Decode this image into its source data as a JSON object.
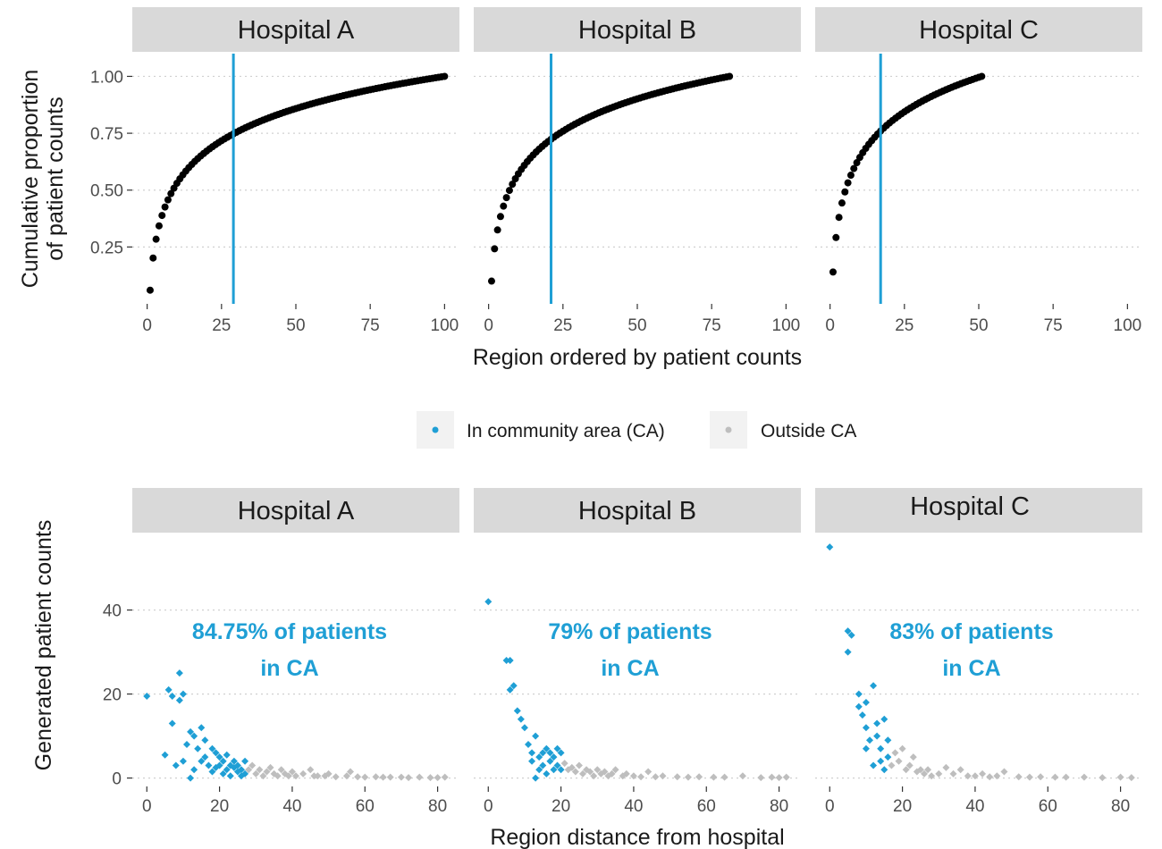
{
  "colors": {
    "in_ca": "#1f9fd5",
    "outside_ca": "#bebebe",
    "cdf_points": "#000000",
    "cutoff_line": "#1f9fd5",
    "strip_bg": "#d9d9d9",
    "grid": "#d0d0d0"
  },
  "legend": {
    "in_label": "In community area (CA)",
    "out_label": "Outside CA",
    "position": "top-center, between panels"
  },
  "chart_data": [
    {
      "type": "scatter",
      "facet_by": "hospital",
      "facets": [
        "Hospital A",
        "Hospital B",
        "Hospital C"
      ],
      "xlabel": "Region ordered by patient counts",
      "ylabel_lines": [
        "Cumulative proportion",
        "of patient counts"
      ],
      "xlim": [
        -5,
        105
      ],
      "ylim": [
        0.0,
        1.1
      ],
      "xticks": [
        0,
        25,
        50,
        75,
        100
      ],
      "yticks": [
        0.25,
        0.5,
        0.75,
        1.0
      ],
      "ytick_labels": [
        "0.25",
        "0.50",
        "0.75",
        "1.00"
      ],
      "grid": "horizontal dotted",
      "series": [
        {
          "facet": "Hospital A",
          "n_regions": 100,
          "first_value": 0.06,
          "cutoff_region": 29,
          "cutoff_proportion": 0.71
        },
        {
          "facet": "Hospital B",
          "n_regions": 81,
          "first_value": 0.1,
          "cutoff_region": 21,
          "cutoff_proportion": 0.72
        },
        {
          "facet": "Hospital C",
          "n_regions": 51,
          "first_value": 0.14,
          "cutoff_region": 17,
          "cutoff_proportion": 0.8
        }
      ]
    },
    {
      "type": "scatter",
      "facet_by": "hospital",
      "facets": [
        "Hospital A",
        "Hospital B",
        "Hospital C"
      ],
      "xlabel": "Region distance from hospital",
      "ylabel": "Generated patient counts",
      "xlim": [
        -4,
        86
      ],
      "ylim": [
        -2,
        58
      ],
      "xticks": [
        0,
        20,
        40,
        60,
        80
      ],
      "yticks": [
        0,
        20,
        40
      ],
      "grid": "horizontal dotted",
      "series": [
        {
          "facet": "Hospital A",
          "annotation_lines": [
            "84.75% of patients",
            "in CA"
          ],
          "in_ca": [
            [
              0,
              19.5
            ],
            [
              5,
              5.5
            ],
            [
              6,
              21
            ],
            [
              7,
              13
            ],
            [
              7,
              19.5
            ],
            [
              8,
              3
            ],
            [
              9,
              25
            ],
            [
              9,
              18.5
            ],
            [
              10,
              20
            ],
            [
              10,
              4
            ],
            [
              11,
              8
            ],
            [
              12,
              0
            ],
            [
              12,
              11
            ],
            [
              13,
              10
            ],
            [
              13,
              2
            ],
            [
              14,
              7
            ],
            [
              15,
              12
            ],
            [
              15,
              4
            ],
            [
              16,
              5
            ],
            [
              16,
              9
            ],
            [
              17,
              3
            ],
            [
              18,
              1.5
            ],
            [
              18,
              7
            ],
            [
              19,
              6
            ],
            [
              19,
              2.5
            ],
            [
              20,
              5
            ],
            [
              20,
              3
            ],
            [
              21,
              4
            ],
            [
              21,
              1
            ],
            [
              22,
              2
            ],
            [
              22,
              5.5
            ],
            [
              23,
              3
            ],
            [
              23,
              0.5
            ],
            [
              24,
              2.5
            ],
            [
              24,
              4
            ],
            [
              25,
              1.5
            ],
            [
              25,
              3
            ],
            [
              26,
              2
            ],
            [
              26,
              0.5
            ],
            [
              27,
              4
            ],
            [
              27,
              1
            ]
          ],
          "outside_ca": [
            [
              28,
              2
            ],
            [
              29,
              3
            ],
            [
              30,
              1
            ],
            [
              31,
              2
            ],
            [
              32,
              0.5
            ],
            [
              33,
              1.5
            ],
            [
              34,
              2.5
            ],
            [
              35,
              1
            ],
            [
              36,
              0.5
            ],
            [
              37,
              2
            ],
            [
              38,
              1
            ],
            [
              39,
              0.5
            ],
            [
              40,
              1.5
            ],
            [
              41,
              0.5
            ],
            [
              43,
              1
            ],
            [
              45,
              2
            ],
            [
              46,
              0.5
            ],
            [
              47,
              0.5
            ],
            [
              49,
              0.5
            ],
            [
              50,
              1
            ],
            [
              52,
              0.3
            ],
            [
              55,
              0.5
            ],
            [
              56,
              1.5
            ],
            [
              58,
              0.3
            ],
            [
              60,
              0.2
            ],
            [
              63,
              0.3
            ],
            [
              65,
              0.2
            ],
            [
              67,
              0.2
            ],
            [
              70,
              0.2
            ],
            [
              72,
              0.1
            ],
            [
              75,
              0.2
            ],
            [
              78,
              0.1
            ],
            [
              80,
              0.1
            ],
            [
              82,
              0.2
            ]
          ]
        },
        {
          "facet": "Hospital B",
          "annotation_lines": [
            "79% of patients",
            "in CA"
          ],
          "in_ca": [
            [
              0,
              42
            ],
            [
              5,
              28
            ],
            [
              6,
              28
            ],
            [
              6,
              21
            ],
            [
              7,
              22
            ],
            [
              8,
              16
            ],
            [
              9,
              14
            ],
            [
              10,
              12
            ],
            [
              11,
              8
            ],
            [
              12,
              6
            ],
            [
              12,
              4
            ],
            [
              13,
              0
            ],
            [
              13,
              10
            ],
            [
              14,
              2
            ],
            [
              14,
              5
            ],
            [
              15,
              6
            ],
            [
              15,
              3
            ],
            [
              16,
              7
            ],
            [
              16,
              1
            ],
            [
              17,
              4
            ],
            [
              17,
              6
            ],
            [
              18,
              2
            ],
            [
              18,
              5
            ],
            [
              19,
              3
            ],
            [
              19,
              7
            ],
            [
              20,
              6
            ],
            [
              20,
              2
            ]
          ],
          "outside_ca": [
            [
              21,
              3.5
            ],
            [
              22,
              2
            ],
            [
              23,
              2.5
            ],
            [
              24,
              1.5
            ],
            [
              25,
              3
            ],
            [
              26,
              1
            ],
            [
              27,
              2
            ],
            [
              28,
              1.5
            ],
            [
              29,
              0.5
            ],
            [
              30,
              2
            ],
            [
              31,
              1
            ],
            [
              32,
              1.5
            ],
            [
              33,
              0.5
            ],
            [
              34,
              1
            ],
            [
              35,
              2
            ],
            [
              37,
              0.5
            ],
            [
              38,
              1
            ],
            [
              40,
              0.5
            ],
            [
              42,
              0.3
            ],
            [
              44,
              1.5
            ],
            [
              46,
              0.3
            ],
            [
              48,
              0.5
            ],
            [
              52,
              0.3
            ],
            [
              55,
              0.2
            ],
            [
              58,
              0.3
            ],
            [
              62,
              0.2
            ],
            [
              65,
              0.2
            ],
            [
              70,
              0.5
            ],
            [
              75,
              0.1
            ],
            [
              78,
              0.2
            ],
            [
              80,
              0.1
            ],
            [
              82,
              0.2
            ]
          ]
        },
        {
          "facet": "Hospital C",
          "annotation_lines": [
            "83% of patients",
            "in CA"
          ],
          "in_ca": [
            [
              0,
              55
            ],
            [
              5,
              35
            ],
            [
              6,
              34
            ],
            [
              5,
              30
            ],
            [
              8,
              20
            ],
            [
              8,
              17
            ],
            [
              9,
              15
            ],
            [
              10,
              12
            ],
            [
              10,
              7
            ],
            [
              10,
              18
            ],
            [
              11,
              9
            ],
            [
              12,
              22
            ],
            [
              12,
              3
            ],
            [
              13,
              13
            ],
            [
              13,
              10
            ],
            [
              14,
              4
            ],
            [
              14,
              7
            ],
            [
              15,
              2
            ],
            [
              15,
              14
            ],
            [
              16,
              9
            ],
            [
              16,
              5
            ]
          ],
          "outside_ca": [
            [
              17,
              3
            ],
            [
              18,
              6
            ],
            [
              19,
              4
            ],
            [
              20,
              7
            ],
            [
              21,
              2
            ],
            [
              22,
              3
            ],
            [
              23,
              5
            ],
            [
              24,
              1.5
            ],
            [
              25,
              2
            ],
            [
              26,
              1
            ],
            [
              27,
              2
            ],
            [
              28,
              0.5
            ],
            [
              30,
              1
            ],
            [
              32,
              2.5
            ],
            [
              34,
              1
            ],
            [
              36,
              2
            ],
            [
              38,
              0.5
            ],
            [
              40,
              0.5
            ],
            [
              42,
              1
            ],
            [
              44,
              0.3
            ],
            [
              46,
              0.5
            ],
            [
              48,
              1.5
            ],
            [
              52,
              0.3
            ],
            [
              55,
              0.2
            ],
            [
              58,
              0.3
            ],
            [
              62,
              0.2
            ],
            [
              65,
              0.2
            ],
            [
              70,
              0.2
            ],
            [
              75,
              0.1
            ],
            [
              80,
              0.2
            ],
            [
              83,
              0.1
            ]
          ]
        }
      ]
    }
  ]
}
